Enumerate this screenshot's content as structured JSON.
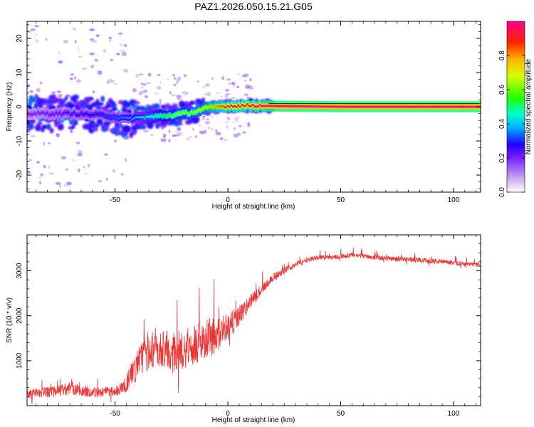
{
  "figure_title": "PAZ1.2026.050.15.21.G05",
  "chart_data": [
    {
      "type": "heatmap",
      "title": "PAZ1.2026.050.15.21.G05",
      "xlabel": "Height of straight line (km)",
      "ylabel": "Frequency (Hz)",
      "xlim": [
        -89,
        112
      ],
      "ylim": [
        -25,
        25
      ],
      "xticks": [
        -50,
        0,
        50,
        100
      ],
      "yticks": [
        -20,
        -10,
        0,
        10,
        20
      ],
      "xtick_labels": [
        "-50",
        "0",
        "50",
        "100"
      ],
      "ytick_labels": [
        "-20",
        "-10",
        "0",
        "10",
        "20"
      ],
      "ridge": {
        "description_points_x_km": [
          -85,
          -70,
          -55,
          -45,
          -35,
          -25,
          -15,
          -10,
          -5,
          0,
          10,
          20,
          50,
          112
        ],
        "frequency_hz": [
          -2,
          -2,
          -2.5,
          -3.5,
          -3,
          -2.5,
          -1.5,
          -0.5,
          0,
          0.2,
          0.4,
          0.2,
          0,
          0
        ],
        "normalized_amplitude": [
          0.2,
          0.25,
          0.3,
          0.35,
          0.45,
          0.6,
          0.65,
          0.7,
          0.8,
          0.9,
          0.95,
          1.0,
          1.0,
          1.0
        ]
      },
      "colorbar": {
        "label": "Normalized spectral amplitude",
        "range": [
          0,
          1
        ],
        "ticks": [
          0.0,
          0.2,
          0.4,
          0.6,
          0.8
        ],
        "tick_labels": [
          "0.0",
          "0.2",
          "0.4",
          "0.6",
          "0.8"
        ]
      }
    },
    {
      "type": "line",
      "xlabel": "Height of straight line (km)",
      "ylabel": "SNR (10 * v/v)",
      "xlim": [
        -89,
        112
      ],
      "ylim": [
        0,
        3800
      ],
      "xticks": [
        -50,
        0,
        50,
        100
      ],
      "yticks": [
        1000,
        2000,
        3000
      ],
      "xtick_labels": [
        "-50",
        "0",
        "50",
        "100"
      ],
      "ytick_labels": [
        "1000",
        "2000",
        "3000"
      ],
      "series": [
        {
          "name": "SNR",
          "color": "#ee3333",
          "x": [
            -89,
            -80,
            -70,
            -60,
            -50,
            -45,
            -40,
            -35,
            -30,
            -25,
            -20,
            -15,
            -10,
            -5,
            0,
            5,
            10,
            15,
            20,
            25,
            30,
            35,
            40,
            45,
            50,
            55,
            60,
            65,
            70,
            75,
            80,
            85,
            90,
            95,
            100,
            105,
            112
          ],
          "values": [
            250,
            300,
            380,
            300,
            300,
            500,
            900,
            1250,
            1300,
            1150,
            1250,
            1350,
            1500,
            1550,
            1750,
            2000,
            2300,
            2600,
            2850,
            3000,
            3150,
            3250,
            3300,
            3300,
            3320,
            3350,
            3330,
            3300,
            3280,
            3260,
            3250,
            3240,
            3220,
            3200,
            3180,
            3150,
            3130
          ],
          "noise_amplitude": [
            200,
            250,
            280,
            230,
            230,
            400,
            700,
            900,
            900,
            900,
            900,
            900,
            950,
            800,
            600,
            450,
            350,
            250,
            180,
            140,
            120,
            110,
            110,
            110,
            110,
            110,
            110,
            110,
            110,
            110,
            110,
            110,
            130,
            110,
            100,
            100,
            100
          ]
        }
      ]
    }
  ]
}
